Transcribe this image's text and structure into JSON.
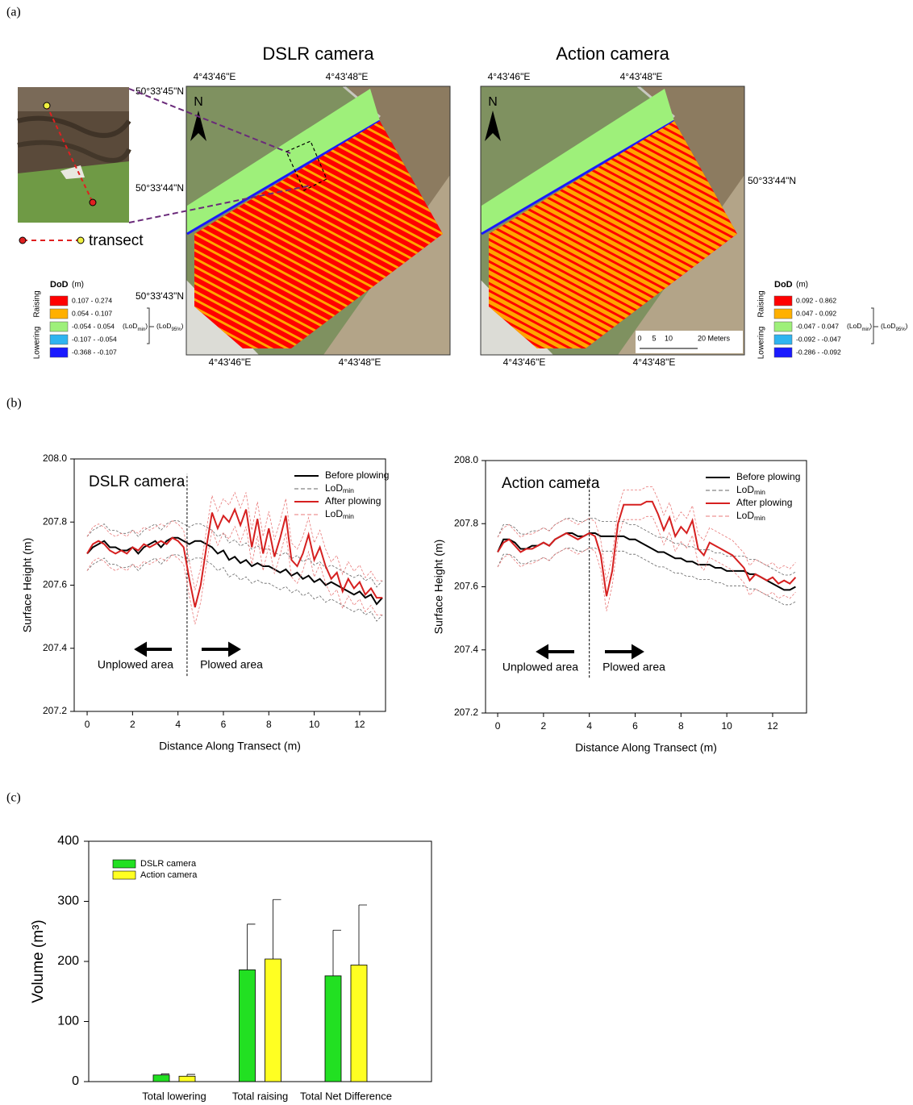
{
  "panel_labels": [
    "(a)",
    "(b)",
    "(c)"
  ],
  "maps": {
    "transect": "transect",
    "panels": [
      {
        "title": "DSLR camera",
        "north": "N",
        "top_lon": [
          "4°43'46\"E",
          "4°43'48\"E"
        ],
        "bottom_lon": [
          "4°43'46\"E",
          "4°43'48\"E"
        ],
        "lat": [
          "50°33'45\"N",
          "50°33'44\"N",
          "50°33'43\"N"
        ],
        "legend": {
          "title": "DoD",
          "unit": "(m)",
          "raising": "Raising",
          "lowering": "Lowering",
          "classes": [
            {
              "label": "0.107 - 0.274",
              "color": "#ff0000"
            },
            {
              "label": "0.054 - 0.107",
              "color": "#ffb000"
            },
            {
              "label": "-0.054 - 0.054",
              "color": "#9ef07a"
            },
            {
              "label": "-0.107 - -0.054",
              "color": "#2fb4f0"
            },
            {
              "label": "-0.368 - -0.107",
              "color": "#1a1aff"
            }
          ],
          "lod_min": [
            "(LoD",
            "min",
            ")"
          ],
          "lod95": [
            "(LoD",
            "95%",
            ")"
          ]
        }
      },
      {
        "title": "Action camera",
        "north": "N",
        "top_lon": [
          "4°43'46\"E",
          "4°43'48\"E"
        ],
        "bottom_lon": [
          "4°43'46\"E",
          "4°43'48\"E"
        ],
        "lat": [
          "50°33'44\"N"
        ],
        "scale": [
          "0",
          "5",
          "10",
          "20 Meters"
        ],
        "legend": {
          "title": "DoD",
          "unit": "(m)",
          "raising": "Raising",
          "lowering": "Lowering",
          "classes": [
            {
              "label": "0.092 - 0.862",
              "color": "#ff0000"
            },
            {
              "label": "0.047 - 0.092",
              "color": "#ffb000"
            },
            {
              "label": "-0.047 - 0.047",
              "color": "#9ef07a"
            },
            {
              "label": "-0.092 - -0.047",
              "color": "#2fb4f0"
            },
            {
              "label": "-0.286 - -0.092",
              "color": "#1a1aff"
            }
          ],
          "lod_min": [
            "(LoD",
            "min",
            ")"
          ],
          "lod95": [
            "(LoD",
            "95%",
            ")"
          ]
        }
      }
    ]
  },
  "chart_data": [
    {
      "type": "line",
      "title": "DSLR camera",
      "x_label": "Distance Along Transect (m)",
      "y_label": "Surface Height (m)",
      "xlim": [
        -0.57,
        13.14
      ],
      "xticks": [
        0,
        2,
        4,
        6,
        8,
        10,
        12
      ],
      "ylim": [
        207.2,
        208.0
      ],
      "yticks": [
        207.2,
        207.4,
        207.6,
        207.8,
        {
          "value": 208.0,
          "label": "208.0"
        }
      ],
      "divider_x": 4.4,
      "left_note": "Unplowed area",
      "right_note": "Plowed area",
      "x": [
        0,
        0.25,
        0.5,
        0.75,
        1,
        1.25,
        1.5,
        1.75,
        2,
        2.25,
        2.5,
        2.75,
        3,
        3.25,
        3.5,
        3.75,
        4,
        4.25,
        4.5,
        4.75,
        5,
        5.25,
        5.5,
        5.75,
        6,
        6.25,
        6.5,
        6.75,
        7,
        7.25,
        7.5,
        7.75,
        8,
        8.25,
        8.5,
        8.75,
        9,
        9.25,
        9.5,
        9.75,
        10,
        10.25,
        10.5,
        10.75,
        11,
        11.25,
        11.5,
        11.75,
        12,
        12.25,
        12.5,
        12.75,
        13
      ],
      "series": [
        {
          "name": "Before plowing",
          "color": "#000000",
          "values": [
            207.7,
            207.72,
            207.73,
            207.74,
            207.72,
            207.72,
            207.71,
            207.71,
            207.72,
            207.7,
            207.72,
            207.73,
            207.74,
            207.72,
            207.74,
            207.75,
            207.75,
            207.74,
            207.73,
            207.74,
            207.74,
            207.73,
            207.72,
            207.7,
            207.71,
            207.68,
            207.69,
            207.67,
            207.68,
            207.66,
            207.67,
            207.66,
            207.66,
            207.65,
            207.64,
            207.65,
            207.63,
            207.64,
            207.62,
            207.63,
            207.61,
            207.62,
            207.6,
            207.61,
            207.6,
            207.59,
            207.58,
            207.57,
            207.58,
            207.56,
            207.57,
            207.54,
            207.56
          ],
          "lod": {
            "name": "LoD",
            "sub": "min",
            "value": 0.054,
            "color": "#666666"
          }
        },
        {
          "name": "After plowing",
          "color": "#d62020",
          "values": [
            207.7,
            207.73,
            207.74,
            207.73,
            207.71,
            207.7,
            207.71,
            207.7,
            207.72,
            207.71,
            207.73,
            207.72,
            207.73,
            207.74,
            207.73,
            207.75,
            207.74,
            207.72,
            207.62,
            207.53,
            207.6,
            207.72,
            207.83,
            207.78,
            207.82,
            207.8,
            207.84,
            207.79,
            207.84,
            207.72,
            207.81,
            207.7,
            207.78,
            207.69,
            207.75,
            207.82,
            207.68,
            207.66,
            207.7,
            207.76,
            207.68,
            207.72,
            207.66,
            207.62,
            207.64,
            207.58,
            207.62,
            207.59,
            207.61,
            207.57,
            207.59,
            207.56,
            207.56
          ],
          "lod": {
            "name": "LoD",
            "sub": "min",
            "value": 0.054,
            "color": "#e87878"
          }
        }
      ]
    },
    {
      "type": "line",
      "title": "Action camera",
      "x_label": "Distance Along Transect (m)",
      "y_label": "Surface Height (m)",
      "xlim": [
        -0.53,
        13.48
      ],
      "xticks": [
        0,
        2,
        4,
        6,
        8,
        10,
        12
      ],
      "ylim": [
        207.2,
        208.0
      ],
      "yticks": [
        207.2,
        207.4,
        207.6,
        207.8,
        {
          "value": 208.0,
          "label": "208.0"
        }
      ],
      "divider_x": 4,
      "left_note": "Unplowed area",
      "right_note": "Plowed area",
      "x": [
        0,
        0.25,
        0.5,
        0.75,
        1,
        1.25,
        1.5,
        1.75,
        2,
        2.25,
        2.5,
        2.75,
        3,
        3.25,
        3.5,
        3.75,
        4,
        4.25,
        4.5,
        4.75,
        5,
        5.25,
        5.5,
        5.75,
        6,
        6.25,
        6.5,
        6.75,
        7,
        7.25,
        7.5,
        7.75,
        8,
        8.25,
        8.5,
        8.75,
        9,
        9.25,
        9.5,
        9.75,
        10,
        10.25,
        10.5,
        10.75,
        11,
        11.25,
        11.5,
        11.75,
        12,
        12.25,
        12.5,
        12.75,
        13
      ],
      "series": [
        {
          "name": "Before plowing",
          "color": "#000000",
          "values": [
            207.71,
            207.75,
            207.75,
            207.74,
            207.72,
            207.72,
            207.73,
            207.73,
            207.74,
            207.73,
            207.75,
            207.76,
            207.77,
            207.77,
            207.76,
            207.76,
            207.77,
            207.77,
            207.76,
            207.76,
            207.76,
            207.76,
            207.76,
            207.75,
            207.75,
            207.74,
            207.73,
            207.72,
            207.71,
            207.71,
            207.7,
            207.69,
            207.69,
            207.68,
            207.68,
            207.67,
            207.67,
            207.67,
            207.66,
            207.66,
            207.65,
            207.65,
            207.65,
            207.65,
            207.64,
            207.64,
            207.63,
            207.62,
            207.61,
            207.6,
            207.59,
            207.59,
            207.6
          ],
          "lod": {
            "name": "LoD",
            "sub": "min",
            "value": 0.047,
            "color": "#666666"
          }
        },
        {
          "name": "After plowing",
          "color": "#d62020",
          "values": [
            207.71,
            207.74,
            207.75,
            207.73,
            207.71,
            207.72,
            207.72,
            207.73,
            207.74,
            207.73,
            207.75,
            207.76,
            207.77,
            207.76,
            207.75,
            207.76,
            207.77,
            207.76,
            207.7,
            207.57,
            207.65,
            207.8,
            207.86,
            207.86,
            207.86,
            207.86,
            207.87,
            207.87,
            207.83,
            207.78,
            207.82,
            207.76,
            207.79,
            207.77,
            207.81,
            207.72,
            207.7,
            207.74,
            207.73,
            207.72,
            207.71,
            207.7,
            207.68,
            207.66,
            207.62,
            207.64,
            207.63,
            207.62,
            207.63,
            207.61,
            207.62,
            207.61,
            207.63
          ],
          "lod": {
            "name": "LoD",
            "sub": "min",
            "value": 0.047,
            "color": "#e87878"
          }
        }
      ]
    },
    {
      "type": "bar",
      "y_label": "Volume (m³)",
      "categories": [
        "Total lowering",
        "Total raising",
        "Total Net Difference"
      ],
      "ylim": [
        0,
        400
      ],
      "yticks": [
        0,
        100,
        200,
        300,
        400
      ],
      "series": [
        {
          "name": "DSLR camera",
          "color": "#22e022",
          "values": [
            11,
            186,
            176
          ],
          "errors": [
            2,
            76,
            76
          ]
        },
        {
          "name": "Action camera",
          "color": "#ffff22",
          "values": [
            9,
            204,
            194
          ],
          "errors": [
            3,
            99,
            100
          ]
        }
      ]
    }
  ]
}
